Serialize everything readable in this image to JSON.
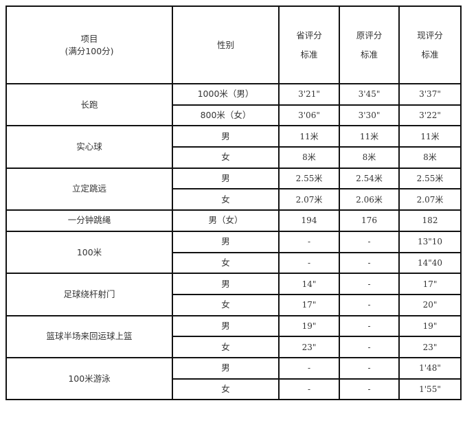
{
  "header": {
    "item": "项目",
    "item_note": "(满分100分)",
    "gender": "性别",
    "cols": [
      {
        "line1": "省评分",
        "line2": "标准"
      },
      {
        "line1": "原评分",
        "line2": "标准"
      },
      {
        "line1": "现评分",
        "line2": "标准"
      }
    ]
  },
  "groups": [
    {
      "item": "长跑",
      "rows": [
        {
          "gender": "1000米（男）",
          "values": [
            "3'21\"",
            "3'45\"",
            "3'37\""
          ]
        },
        {
          "gender": "800米（女）",
          "values": [
            "3'06\"",
            "3'30\"",
            "3'22\""
          ]
        }
      ]
    },
    {
      "item": "实心球",
      "rows": [
        {
          "gender": "男",
          "values": [
            "11米",
            "11米",
            "11米"
          ]
        },
        {
          "gender": "女",
          "values": [
            "8米",
            "8米",
            "8米"
          ]
        }
      ]
    },
    {
      "item": "立定跳远",
      "rows": [
        {
          "gender": "男",
          "values": [
            "2.55米",
            "2.54米",
            "2.55米"
          ]
        },
        {
          "gender": "女",
          "values": [
            "2.07米",
            "2.06米",
            "2.07米"
          ]
        }
      ]
    },
    {
      "item": "一分钟跳绳",
      "rows": [
        {
          "gender": "男（女）",
          "values": [
            "194",
            "176",
            "182"
          ]
        }
      ]
    },
    {
      "item": "100米",
      "rows": [
        {
          "gender": "男",
          "values": [
            "-",
            "-",
            "13\"10"
          ]
        },
        {
          "gender": "女",
          "values": [
            "-",
            "-",
            "14\"40"
          ]
        }
      ]
    },
    {
      "item": "足球绕杆射门",
      "rows": [
        {
          "gender": "男",
          "values": [
            "14\"",
            "-",
            "17\""
          ]
        },
        {
          "gender": "女",
          "values": [
            "17\"",
            "-",
            "20\""
          ]
        }
      ]
    },
    {
      "item": "篮球半场来回运球上篮",
      "rows": [
        {
          "gender": "男",
          "values": [
            "19\"",
            "-",
            "19\""
          ]
        },
        {
          "gender": "女",
          "values": [
            "23\"",
            "-",
            "23\""
          ]
        }
      ]
    },
    {
      "item": "100米游泳",
      "rows": [
        {
          "gender": "男",
          "values": [
            "-",
            "-",
            "1'48\""
          ]
        },
        {
          "gender": "女",
          "values": [
            "-",
            "-",
            "1'55\""
          ]
        }
      ]
    }
  ]
}
